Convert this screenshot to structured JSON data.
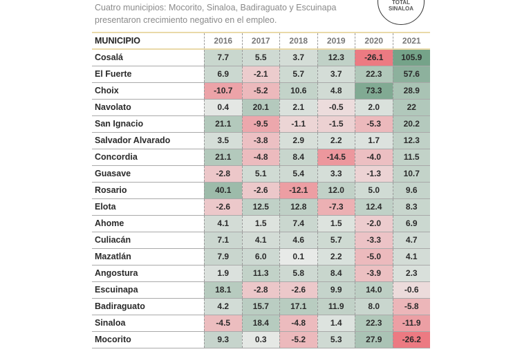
{
  "subtitle": [
    "Cuatro municipios: Mocorito, Sinaloa, Badiraguato y Escuinapa",
    "presentaron crecimiento negativo en el empleo."
  ],
  "badge": [
    "TOTAL",
    "SINALOA"
  ],
  "colors": {
    "positive": "#6f9f84",
    "negative": "#ec7a82",
    "neutral": "#ececeb"
  },
  "chart_data": {
    "type": "table",
    "columns": [
      "MUNICIPIO",
      "2016",
      "2017",
      "2018",
      "2019",
      "2020",
      "2021"
    ],
    "rows": [
      {
        "name": "Cosalá",
        "values": [
          "7.7",
          "5.5",
          "3.7",
          "12.3",
          "-26.1",
          "105.9"
        ]
      },
      {
        "name": "El Fuerte",
        "values": [
          "6.9",
          "-2.1",
          "5.7",
          "3.7",
          "22.3",
          "57.6"
        ]
      },
      {
        "name": "Choix",
        "values": [
          "-10.7",
          "-5.2",
          "10.6",
          "4.8",
          "73.3",
          "28.9"
        ]
      },
      {
        "name": "Navolato",
        "values": [
          "0.4",
          "20.1",
          "2.1",
          "-0.5",
          "2.0",
          "22"
        ]
      },
      {
        "name": "San Ignacio",
        "values": [
          "21.1",
          "-9.5",
          "-1.1",
          "-1.5",
          "-5.3",
          "20.2"
        ]
      },
      {
        "name": "Salvador Alvarado",
        "values": [
          "3.5",
          "-3.8",
          "2.9",
          "2.2",
          "1.7",
          "12.3"
        ]
      },
      {
        "name": "Concordia",
        "values": [
          "21.1",
          "-4.8",
          "8.4",
          "-14.5",
          "-4.0",
          "11.5"
        ]
      },
      {
        "name": "Guasave",
        "values": [
          "-2.8",
          "5.1",
          "5.4",
          "3.3",
          "-1.3",
          "10.7"
        ]
      },
      {
        "name": "Rosario",
        "values": [
          "40.1",
          "-2.6",
          "-12.1",
          "12.0",
          "5.0",
          "9.6"
        ]
      },
      {
        "name": "Elota",
        "values": [
          "-2.6",
          "12.5",
          "12.8",
          "-7.3",
          "12.4",
          "8.3"
        ]
      },
      {
        "name": "Ahome",
        "values": [
          "4.1",
          "1.5",
          "7.4",
          "1.5",
          "-2.0",
          "6.9"
        ]
      },
      {
        "name": "Culiacán",
        "values": [
          "7.1",
          "4.1",
          "4.6",
          "5.7",
          "-3.3",
          "4.7"
        ]
      },
      {
        "name": "Mazatlán",
        "values": [
          "7.9",
          "6.0",
          "0.1",
          "2.2",
          "-5.0",
          "4.1"
        ]
      },
      {
        "name": "Angostura",
        "values": [
          "1.9",
          "11.3",
          "5.8",
          "8.4",
          "-3.9",
          "2.3"
        ]
      },
      {
        "name": "Escuinapa",
        "values": [
          "18.1",
          "-2.8",
          "-2.6",
          "9.9",
          "14.0",
          "-0.6"
        ]
      },
      {
        "name": "Badiraguato",
        "values": [
          "4.2",
          "15.7",
          "17.1",
          "11.9",
          "8.0",
          "-5.8"
        ]
      },
      {
        "name": "Sinaloa",
        "values": [
          "-4.5",
          "18.4",
          "-4.8",
          "1.4",
          "22.3",
          "-11.9"
        ]
      },
      {
        "name": "Mocorito",
        "values": [
          "9.3",
          "0.3",
          "-5.2",
          "5.3",
          "27.9",
          "-26.2"
        ]
      }
    ]
  }
}
